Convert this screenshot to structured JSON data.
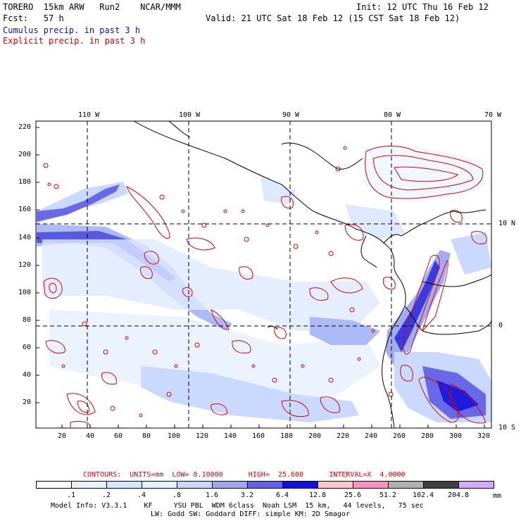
{
  "header": {
    "title_left": "TORERO  15km ARW   Run2    NCAR/MMM",
    "init": "Init: 12 UTC Thu 16 Feb 12",
    "fcst": "Fcst:   57 h",
    "valid": "Valid: 21 UTC Sat 18 Feb 12 (15 CST Sat 18 Feb 12)",
    "cumulus": "Cumulus precip. in past 3 h",
    "explicit": "Explicit precip. in past 3 h"
  },
  "axes": {
    "top_lon": [
      "110 W",
      "100 W",
      "90 W",
      "80 W",
      "70 W"
    ],
    "right_lat": [
      "10 N",
      "0",
      "10 S"
    ],
    "left_y": [
      "220",
      "200",
      "180",
      "160",
      "140",
      "120",
      "100",
      "80",
      "60",
      "40",
      "20"
    ],
    "bottom_x": [
      "20",
      "40",
      "60",
      "80",
      "100",
      "120",
      "140",
      "160",
      "180",
      "200",
      "220",
      "240",
      "260",
      "280",
      "300",
      "320"
    ]
  },
  "contour_info": {
    "label": "CONTOURS:  UNITS=mm  LOW= 0.10000      HIGH=  25.600      INTERVAL=X  4.0000"
  },
  "legend": {
    "values": [
      ".1",
      ".2",
      ".4",
      ".8",
      "1.6",
      "3.2",
      "6.4",
      "12.8",
      "25.6",
      "51.2",
      "102.4",
      "204.8"
    ],
    "unit": "mm",
    "colors": [
      "#ffffff",
      "#e8f2ff",
      "#d0e8ff",
      "#e0f4ff",
      "#c8d8ff",
      "#a0a8f0",
      "#6060e8",
      "#1010e0",
      "#ffc8c8",
      "#ff90c0",
      "#b0b0b0",
      "#404040",
      "#d8a8ff"
    ]
  },
  "footer": {
    "line1": "Model Info: V3.3.1    KF     YSU PBL  WDM 6class  Noah LSM  15 km,   44 levels,   75 sec",
    "line2": "LW: Godd SW: Goddard DIFF: simple KM: 2D Smagor"
  }
}
